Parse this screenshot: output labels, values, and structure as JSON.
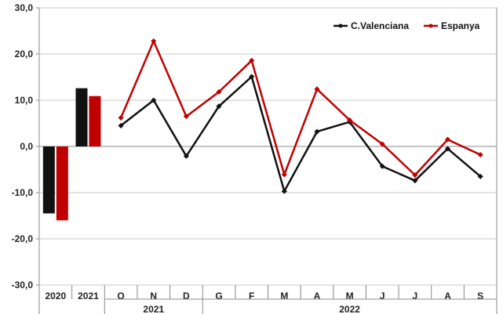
{
  "chart_data": {
    "type": "bar+line",
    "ylim": [
      -30,
      30
    ],
    "y_ticks": [
      "-30,0",
      "-20,0",
      "-10,0",
      "0,0",
      "10,0",
      "20,0",
      "30,0"
    ],
    "y_tick_values": [
      -30,
      -20,
      -10,
      0,
      10,
      20,
      30
    ],
    "grid": true,
    "legend_position": "top-right",
    "bar_categories": [
      "2020",
      "2021"
    ],
    "line_categories": [
      "O",
      "N",
      "D",
      "G",
      "F",
      "M",
      "A",
      "M",
      "J",
      "J",
      "A",
      "S"
    ],
    "year_groups": [
      {
        "label": "2021",
        "count": 3
      },
      {
        "label": "2022",
        "count": 9
      }
    ],
    "series": [
      {
        "name": "C.Valenciana",
        "color": "#111111",
        "bar_values": [
          -14.5,
          12.6
        ],
        "line_values": [
          4.5,
          10.0,
          -2.1,
          8.7,
          15.1,
          -9.7,
          3.2,
          5.3,
          -4.3,
          -7.4,
          -0.5,
          -6.5
        ]
      },
      {
        "name": "Espanya",
        "color": "#c00000",
        "bar_values": [
          -16.0,
          10.9
        ],
        "line_values": [
          6.2,
          22.8,
          6.5,
          11.8,
          18.6,
          -6.1,
          12.4,
          5.7,
          0.5,
          -6.2,
          1.5,
          -1.8
        ]
      }
    ]
  }
}
